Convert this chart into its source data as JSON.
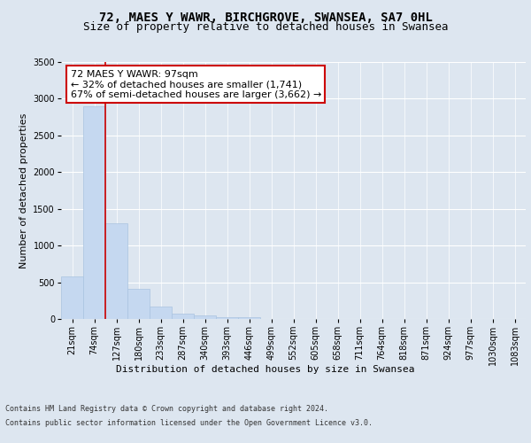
{
  "title": "72, MAES Y WAWR, BIRCHGROVE, SWANSEA, SA7 0HL",
  "subtitle": "Size of property relative to detached houses in Swansea",
  "xlabel": "Distribution of detached houses by size in Swansea",
  "ylabel": "Number of detached properties",
  "categories": [
    "21sqm",
    "74sqm",
    "127sqm",
    "180sqm",
    "233sqm",
    "287sqm",
    "340sqm",
    "393sqm",
    "446sqm",
    "499sqm",
    "552sqm",
    "605sqm",
    "658sqm",
    "711sqm",
    "764sqm",
    "818sqm",
    "871sqm",
    "924sqm",
    "977sqm",
    "1030sqm",
    "1083sqm"
  ],
  "values": [
    580,
    2900,
    1300,
    410,
    165,
    75,
    50,
    30,
    20,
    0,
    0,
    0,
    0,
    0,
    0,
    0,
    0,
    0,
    0,
    0,
    0
  ],
  "bar_color": "#c5d8f0",
  "bar_edge_color": "#aac4e0",
  "vline_x_idx": 1,
  "vline_color": "#cc0000",
  "ylim": [
    0,
    3500
  ],
  "yticks": [
    0,
    500,
    1000,
    1500,
    2000,
    2500,
    3000,
    3500
  ],
  "annotation_text": "72 MAES Y WAWR: 97sqm\n← 32% of detached houses are smaller (1,741)\n67% of semi-detached houses are larger (3,662) →",
  "annotation_box_color": "#ffffff",
  "annotation_border_color": "#cc0000",
  "footer_line1": "Contains HM Land Registry data © Crown copyright and database right 2024.",
  "footer_line2": "Contains public sector information licensed under the Open Government Licence v3.0.",
  "bg_color": "#dde6f0",
  "plot_bg_color": "#dde6f0",
  "title_fontsize": 10,
  "subtitle_fontsize": 9,
  "ylabel_fontsize": 8,
  "tick_fontsize": 7,
  "footer_fontsize": 6
}
